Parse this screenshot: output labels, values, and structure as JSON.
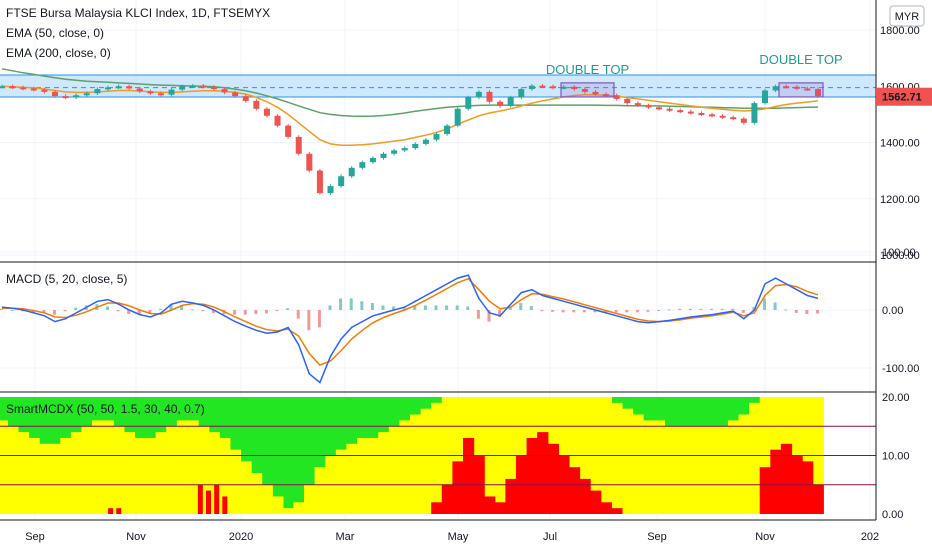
{
  "header": {
    "title": "FTSE Bursa Malaysia KLCI Index, 1D, FTSEMYX",
    "ema50": "EMA (50, close, 0)",
    "ema200": "EMA (200, close, 0)",
    "currency": "MYR"
  },
  "last_price": "1562.71",
  "colors": {
    "up": "#26a69a",
    "down": "#ef5350",
    "ema50": "#f59a1c",
    "ema200": "#5aa36a",
    "macd": "#2962ff",
    "signal": "#f57c00",
    "green": "#22e622",
    "yellow": "#ffff00",
    "red": "#ff0000",
    "zone": "#bbdefb",
    "rect": "#7e57c2",
    "ann": "#1e9e8e"
  },
  "annotations": [
    "DOUBLE TOP",
    "DOUBLE TOP"
  ],
  "xaxis": [
    "Sep",
    "Nov",
    "2020",
    "Mar",
    "May",
    "Jul",
    "Sep",
    "Nov",
    "202"
  ],
  "macd_title": "MACD (5, 20, close, 5)",
  "smart_title": "SmartMCDX (50, 50, 1.5, 30, 40, 0.7)",
  "chart_data": [
    {
      "type": "line",
      "title": "FTSE Bursa Malaysia KLCI Index, 1D, FTSEMYX",
      "yticks": [
        "1800.00",
        "1600.00",
        "1400.00",
        "1200.00",
        "1000.00"
      ],
      "ylim": [
        1000,
        1800
      ],
      "close": [
        1600,
        1596,
        1592,
        1588,
        1580,
        1565,
        1560,
        1568,
        1575,
        1590,
        1596,
        1600,
        1592,
        1582,
        1575,
        1570,
        1588,
        1600,
        1602,
        1598,
        1590,
        1578,
        1565,
        1548,
        1520,
        1495,
        1460,
        1420,
        1360,
        1300,
        1220,
        1245,
        1280,
        1310,
        1330,
        1345,
        1360,
        1372,
        1380,
        1395,
        1410,
        1430,
        1460,
        1520,
        1560,
        1580,
        1545,
        1530,
        1560,
        1590,
        1602,
        1600,
        1595,
        1598,
        1590,
        1580,
        1572,
        1568,
        1555,
        1540,
        1532,
        1525,
        1520,
        1515,
        1510,
        1505,
        1500,
        1495,
        1490,
        1485,
        1470,
        1540,
        1585,
        1600,
        1598,
        1592,
        1590,
        1565
      ],
      "ema50": [
        1600,
        1598,
        1596,
        1594,
        1590,
        1585,
        1580,
        1578,
        1578,
        1580,
        1582,
        1585,
        1585,
        1583,
        1580,
        1578,
        1578,
        1580,
        1582,
        1584,
        1584,
        1582,
        1578,
        1572,
        1560,
        1545,
        1525,
        1500,
        1470,
        1440,
        1410,
        1395,
        1390,
        1390,
        1392,
        1395,
        1400,
        1405,
        1410,
        1418,
        1426,
        1436,
        1448,
        1465,
        1480,
        1495,
        1505,
        1512,
        1520,
        1530,
        1540,
        1548,
        1555,
        1562,
        1567,
        1570,
        1570,
        1568,
        1565,
        1560,
        1555,
        1550,
        1545,
        1540,
        1535,
        1530,
        1525,
        1522,
        1518,
        1515,
        1512,
        1514,
        1520,
        1528,
        1535,
        1540,
        1544,
        1548
      ],
      "ema200": [
        1662,
        1655,
        1648,
        1642,
        1636,
        1630,
        1625,
        1621,
        1618,
        1616,
        1614,
        1612,
        1610,
        1608,
        1606,
        1604,
        1603,
        1602,
        1601,
        1600,
        1598,
        1595,
        1590,
        1584,
        1576,
        1566,
        1555,
        1543,
        1530,
        1518,
        1506,
        1500,
        1496,
        1494,
        1493,
        1494,
        1496,
        1500,
        1505,
        1511,
        1516,
        1521,
        1525,
        1528,
        1530,
        1532,
        1533,
        1533,
        1533,
        1533,
        1533,
        1533,
        1533,
        1533,
        1533,
        1533,
        1533,
        1532,
        1532,
        1531,
        1531,
        1530,
        1530,
        1529,
        1528,
        1527,
        1526,
        1525,
        1524,
        1523,
        1522,
        1522,
        1522,
        1522,
        1523,
        1524,
        1525,
        1526
      ],
      "resistance_zone": [
        1562,
        1640
      ],
      "dashed_level": 1595,
      "ema50_label": "EMA (50, close, 0)",
      "ema200_label": "EMA (200, close, 0)"
    },
    {
      "type": "line",
      "title": "MACD (5, 20, close, 5)",
      "yticks": [
        "100.00",
        "0.00",
        "-100.00"
      ],
      "ylim": [
        -130,
        130
      ],
      "macd": [
        5,
        3,
        0,
        -5,
        -10,
        -20,
        -15,
        -5,
        5,
        15,
        18,
        10,
        0,
        -8,
        -12,
        -5,
        10,
        15,
        12,
        8,
        0,
        -10,
        -20,
        -28,
        -35,
        -40,
        -38,
        -30,
        -60,
        -110,
        -125,
        -80,
        -50,
        -30,
        -20,
        -10,
        -5,
        0,
        5,
        15,
        25,
        35,
        45,
        55,
        60,
        20,
        -5,
        -10,
        10,
        30,
        35,
        25,
        20,
        15,
        10,
        5,
        0,
        -5,
        -10,
        -15,
        -20,
        -22,
        -20,
        -18,
        -15,
        -12,
        -10,
        -8,
        -5,
        -2,
        -15,
        0,
        45,
        55,
        45,
        35,
        25,
        20
      ],
      "signal": [
        3,
        3,
        2,
        -1,
        -5,
        -12,
        -13,
        -9,
        -3,
        5,
        12,
        12,
        7,
        0,
        -6,
        -7,
        0,
        8,
        11,
        10,
        5,
        -3,
        -12,
        -20,
        -28,
        -34,
        -36,
        -33,
        -45,
        -75,
        -95,
        -88,
        -70,
        -50,
        -35,
        -22,
        -13,
        -6,
        0,
        8,
        17,
        27,
        37,
        47,
        54,
        35,
        15,
        2,
        5,
        18,
        28,
        27,
        23,
        19,
        14,
        9,
        4,
        -1,
        -6,
        -11,
        -16,
        -19,
        -20,
        -19,
        -17,
        -14,
        -12,
        -10,
        -7,
        -4,
        -10,
        -5,
        25,
        42,
        44,
        40,
        32,
        26
      ],
      "histogram": [
        2,
        0,
        -2,
        -4,
        -5,
        -8,
        -2,
        4,
        8,
        10,
        6,
        -2,
        -7,
        -8,
        -6,
        2,
        10,
        7,
        1,
        -2,
        -5,
        -7,
        -8,
        -8,
        -7,
        -6,
        -2,
        3,
        -15,
        -35,
        -30,
        8,
        20,
        20,
        15,
        12,
        8,
        6,
        5,
        7,
        8,
        8,
        8,
        8,
        6,
        -15,
        -20,
        -12,
        5,
        12,
        7,
        -2,
        -3,
        -4,
        -4,
        -4,
        -4,
        -4,
        -4,
        -4,
        -4,
        -3,
        0,
        1,
        2,
        2,
        2,
        2,
        2,
        2,
        -5,
        5,
        20,
        13,
        1,
        -5,
        -7,
        -6
      ]
    },
    {
      "type": "area",
      "title": "SmartMCDX (50, 50, 1.5, 30, 40, 0.7)",
      "yticks": [
        "20.00",
        "10.00",
        "0.00"
      ],
      "ylim": [
        0,
        20
      ],
      "hlines": [
        15,
        10,
        5
      ],
      "yellow": [
        16,
        15,
        14,
        13,
        12,
        12,
        13,
        14,
        15,
        16,
        16,
        15,
        14,
        13,
        13,
        14,
        15,
        16,
        16,
        15,
        14,
        13,
        11,
        9,
        7,
        5,
        3,
        1,
        2,
        5,
        8,
        10,
        11,
        12,
        13,
        13,
        14,
        15,
        16,
        17,
        18,
        19,
        20,
        20,
        20,
        20,
        20,
        20,
        20,
        20,
        20,
        20,
        20,
        20,
        20,
        20,
        20,
        20,
        19,
        18,
        17,
        16,
        16,
        15,
        15,
        15,
        15,
        15,
        15,
        16,
        17,
        19,
        20,
        20,
        20,
        20,
        20,
        20
      ],
      "red": [
        0,
        0,
        0,
        0,
        0,
        0,
        0,
        0,
        0,
        0,
        0,
        0,
        0,
        0,
        0,
        0,
        0,
        0,
        0,
        0,
        0,
        0,
        0,
        0,
        0,
        0,
        0,
        0,
        0,
        0,
        0,
        0,
        0,
        0,
        0,
        0,
        0,
        0,
        0,
        0,
        0,
        2,
        5,
        9,
        13,
        10,
        3,
        2,
        6,
        10,
        13,
        14,
        12,
        10,
        8,
        6,
        4,
        2,
        1,
        0,
        0,
        0,
        0,
        0,
        0,
        0,
        0,
        0,
        0,
        0,
        0,
        0,
        8,
        11,
        12,
        10,
        9,
        5
      ],
      "red_early": [
        [
          0.13,
          1
        ],
        [
          0.14,
          1
        ],
        [
          0.24,
          5
        ],
        [
          0.25,
          4
        ],
        [
          0.26,
          5
        ],
        [
          0.27,
          3
        ]
      ]
    }
  ]
}
